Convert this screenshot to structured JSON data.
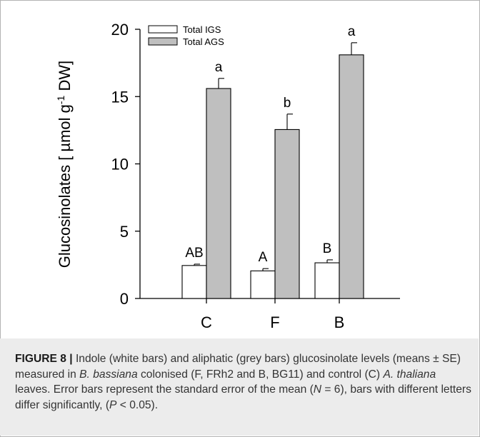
{
  "chart_data": {
    "type": "bar",
    "categories": [
      "C",
      "F",
      "B"
    ],
    "ylabel": "Glucosinolates [ µmol g",
    "ylabel_sup": "-1",
    "ylabel_tail": " DW]",
    "ylim": [
      0,
      20
    ],
    "yticks": [
      0,
      5,
      10,
      15,
      20
    ],
    "grid": false,
    "legend_position": "top-left",
    "series": [
      {
        "name": "Total IGS",
        "color": "#ffffff",
        "values": [
          2.45,
          2.05,
          2.65
        ],
        "errors": [
          0.1,
          0.17,
          0.22
        ],
        "letters": [
          "AB",
          "A",
          "B"
        ]
      },
      {
        "name": "Total AGS",
        "color": "#bfbfbf",
        "values": [
          15.6,
          12.55,
          18.1
        ],
        "errors": [
          0.75,
          1.15,
          0.9
        ],
        "letters": [
          "a",
          "b",
          "a"
        ]
      }
    ]
  },
  "caption": {
    "label": "FIGURE 8 |",
    "t1": " Indole (white bars) and aliphatic (grey bars) glucosinolate levels (means ± SE) measured in ",
    "i1": "B. bassiana",
    "t2": " colonised (F, FRh2 and B, BG11) and control (C) ",
    "i2": "A. thaliana",
    "t3": " leaves. Error bars represent the standard error of the mean (",
    "i3": "N",
    "t4": " = 6), bars with different letters differ significantly, (",
    "i4": "P",
    "t5": " < 0.05)."
  }
}
